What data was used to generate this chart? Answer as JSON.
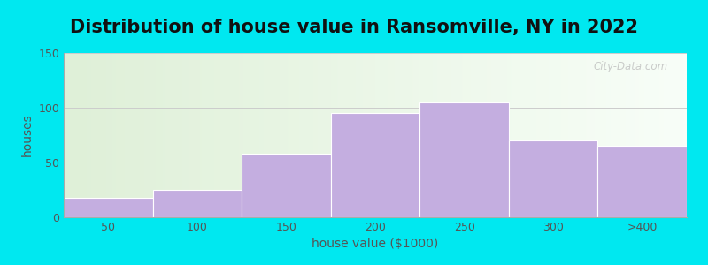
{
  "title": "Distribution of house value in Ransomville, NY in 2022",
  "xlabel": "house value ($1000)",
  "ylabel": "houses",
  "categories": [
    "50",
    "100",
    "150",
    "200",
    "250",
    "300",
    ">400"
  ],
  "values": [
    18,
    25,
    58,
    95,
    105,
    70,
    65
  ],
  "bar_color": "#c4aee0",
  "ylim": [
    0,
    150
  ],
  "yticks": [
    0,
    50,
    100,
    150
  ],
  "figure_bg": "#00e8f0",
  "axes_bg_left": "#dff0d8",
  "axes_bg_right": "#f8fef8",
  "watermark": "City-Data.com",
  "title_fontsize": 15,
  "label_fontsize": 10,
  "tick_fontsize": 9,
  "tick_color": "#555555",
  "grid_color": "#cccccc",
  "spine_color": "#aaaaaa"
}
